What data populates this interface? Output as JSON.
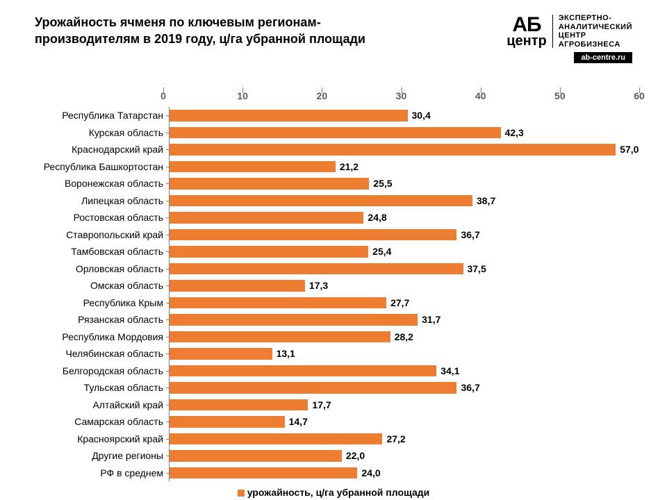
{
  "title": "Урожайность ячменя по ключевым регионам-производителям в 2019 году, ц/га убранной площади",
  "title_fontsize": 18,
  "logo": {
    "ab": "АБ",
    "centr": "центр",
    "tagline_l1": "ЭКСПЕРТНО-",
    "tagline_l2": "АНАЛИТИЧЕСКИЙ",
    "tagline_l3": "ЦЕНТР",
    "tagline_l4": "АГРОБИЗНЕСА",
    "url": "ab-centre.ru"
  },
  "chart": {
    "type": "bar-horizontal",
    "xlim": [
      0,
      60
    ],
    "xtick_step": 10,
    "xticks": [
      "0",
      "10",
      "20",
      "30",
      "40",
      "50",
      "60"
    ],
    "bar_color": "#ed7d31",
    "axis_color": "#808080",
    "tick_font_color": "#595959",
    "tick_fontsize": 14,
    "label_fontsize": 14,
    "value_fontsize": 14,
    "background_color": "#ffffff",
    "legend_label": "урожайность, ц/га убранной площади",
    "rows": [
      {
        "label": "Республика Татарстан",
        "value": 30.4,
        "display": "30,4"
      },
      {
        "label": "Курская область",
        "value": 42.3,
        "display": "42,3"
      },
      {
        "label": "Краснодарский край",
        "value": 57.0,
        "display": "57,0"
      },
      {
        "label": "Республика Башкортостан",
        "value": 21.2,
        "display": "21,2"
      },
      {
        "label": "Воронежская область",
        "value": 25.5,
        "display": "25,5"
      },
      {
        "label": "Липецкая область",
        "value": 38.7,
        "display": "38,7"
      },
      {
        "label": "Ростовская область",
        "value": 24.8,
        "display": "24,8"
      },
      {
        "label": "Ставропольский край",
        "value": 36.7,
        "display": "36,7"
      },
      {
        "label": "Тамбовская область",
        "value": 25.4,
        "display": "25,4"
      },
      {
        "label": "Орловская область",
        "value": 37.5,
        "display": "37,5"
      },
      {
        "label": "Омская область",
        "value": 17.3,
        "display": "17,3"
      },
      {
        "label": "Республика Крым",
        "value": 27.7,
        "display": "27,7"
      },
      {
        "label": "Рязанская область",
        "value": 31.7,
        "display": "31,7"
      },
      {
        "label": "Республика Мордовия",
        "value": 28.2,
        "display": "28,2"
      },
      {
        "label": "Челябинская область",
        "value": 13.1,
        "display": "13,1"
      },
      {
        "label": "Белгородская область",
        "value": 34.1,
        "display": "34,1"
      },
      {
        "label": "Тульская область",
        "value": 36.7,
        "display": "36,7"
      },
      {
        "label": "Алтайский край",
        "value": 17.7,
        "display": "17,7"
      },
      {
        "label": "Самарская область",
        "value": 14.7,
        "display": "14,7"
      },
      {
        "label": "Красноярский край",
        "value": 27.2,
        "display": "27,2"
      },
      {
        "label": "Другие регионы",
        "value": 22.0,
        "display": "22,0"
      },
      {
        "label": "РФ в среднем",
        "value": 24.0,
        "display": "24,0"
      }
    ]
  }
}
